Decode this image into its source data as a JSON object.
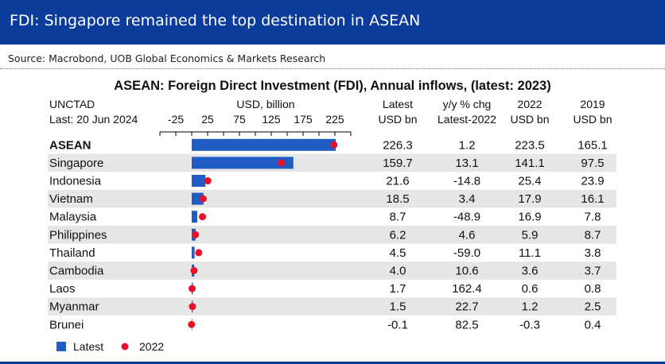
{
  "banner": {
    "title": "FDI: Singapore remained the top destination in ASEAN"
  },
  "source": "Source: Macrobond, UOB Global Economics & Markets Research",
  "chart_data": {
    "type": "bar",
    "title": "ASEAN: Foreign Direct Investment (FDI), Annual inflows, (latest: 2023)",
    "header_left": [
      "UNCTAD",
      "Last: 20 Jun 2024"
    ],
    "axis_title": "USD, billion",
    "xticks": [
      -25,
      25,
      75,
      125,
      175,
      225
    ],
    "xlim": [
      -50,
      250
    ],
    "columns": [
      [
        "Latest",
        "USD bn"
      ],
      [
        "y/y % chg",
        "Latest-2022"
      ],
      [
        "2022",
        "USD bn"
      ],
      [
        "2019",
        "USD bn"
      ]
    ],
    "categories": [
      "ASEAN",
      "Singapore",
      "Indonesia",
      "Vietnam",
      "Malaysia",
      "Philippines",
      "Thailand",
      "Cambodia",
      "Laos",
      "Myanmar",
      "Brunei"
    ],
    "series": [
      {
        "name": "Latest",
        "mark": "bar",
        "color": "#1f5cc4",
        "values": [
          226.3,
          159.7,
          21.6,
          18.5,
          8.7,
          6.2,
          4.5,
          4.0,
          1.7,
          1.5,
          -0.1
        ]
      },
      {
        "name": "2022",
        "mark": "dot",
        "color": "#e8102a",
        "values": [
          223.5,
          141.1,
          25.4,
          17.9,
          16.9,
          5.9,
          11.1,
          3.6,
          0.6,
          1.2,
          -0.3
        ]
      }
    ],
    "table": {
      "latest": [
        "226.3",
        "159.7",
        "21.6",
        "18.5",
        "8.7",
        "6.2",
        "4.5",
        "4.0",
        "1.7",
        "1.5",
        "-0.1"
      ],
      "yoy": [
        "1.2",
        "13.1",
        "-14.8",
        "3.4",
        "-48.9",
        "4.6",
        "-59.0",
        "10.6",
        "162.4",
        "22.7",
        "82.5"
      ],
      "y2022": [
        "223.5",
        "141.1",
        "25.4",
        "17.9",
        "16.9",
        "5.9",
        "11.1",
        "3.6",
        "0.6",
        "1.2",
        "-0.3"
      ],
      "y2019": [
        "165.1",
        "97.5",
        "23.9",
        "16.1",
        "7.8",
        "8.7",
        "3.8",
        "3.7",
        "0.8",
        "2.5",
        "0.4"
      ]
    },
    "legend": [
      "Latest",
      "2022"
    ],
    "grid": false,
    "legend_position": "bottom-left"
  }
}
